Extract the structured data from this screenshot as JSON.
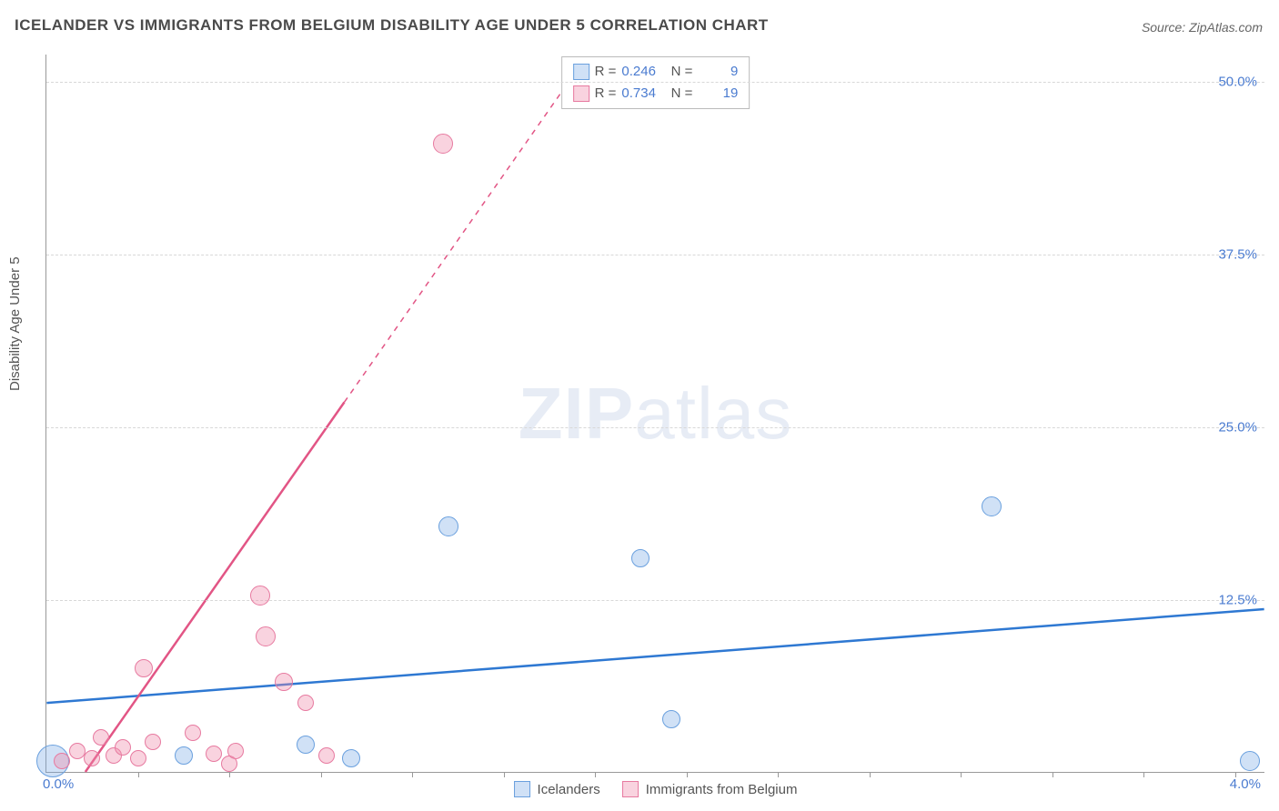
{
  "title": "ICELANDER VS IMMIGRANTS FROM BELGIUM DISABILITY AGE UNDER 5 CORRELATION CHART",
  "source_prefix": "Source: ",
  "source_name": "ZipAtlas.com",
  "y_axis_label": "Disability Age Under 5",
  "watermark_bold": "ZIP",
  "watermark_thin": "atlas",
  "chart": {
    "type": "scatter",
    "xlim": [
      0.0,
      4.0
    ],
    "ylim": [
      0.0,
      52.0
    ],
    "x_origin_label": "0.0%",
    "x_max_label": "4.0%",
    "y_ticks": [
      {
        "v": 12.5,
        "label": "12.5%"
      },
      {
        "v": 25.0,
        "label": "25.0%"
      },
      {
        "v": 37.5,
        "label": "37.5%"
      },
      {
        "v": 50.0,
        "label": "50.0%"
      }
    ],
    "x_minor_ticks": [
      0.3,
      0.6,
      0.9,
      1.2,
      1.5,
      1.8,
      2.1,
      2.4,
      2.7,
      3.0,
      3.3,
      3.6,
      3.9
    ],
    "background_color": "#ffffff",
    "grid_color": "#d8d8d8",
    "series": [
      {
        "id": "icelanders",
        "label": "Icelanders",
        "color_fill": "rgba(120,170,230,0.35)",
        "color_stroke": "#6aa0de",
        "trend_color": "#2e78d2",
        "R": "0.246",
        "N": "9",
        "trend_y_at_xmin": 5.0,
        "trend_y_at_xmax": 11.8,
        "points": [
          {
            "x": 0.02,
            "y": 0.8,
            "r": 18
          },
          {
            "x": 0.45,
            "y": 1.2,
            "r": 10
          },
          {
            "x": 0.85,
            "y": 2.0,
            "r": 10
          },
          {
            "x": 1.0,
            "y": 1.0,
            "r": 10
          },
          {
            "x": 1.32,
            "y": 17.8,
            "r": 11
          },
          {
            "x": 1.95,
            "y": 15.5,
            "r": 10
          },
          {
            "x": 2.05,
            "y": 3.8,
            "r": 10
          },
          {
            "x": 3.1,
            "y": 19.2,
            "r": 11
          },
          {
            "x": 3.95,
            "y": 0.8,
            "r": 11
          }
        ]
      },
      {
        "id": "belgium",
        "label": "Immigrants from Belgium",
        "color_fill": "rgba(240,140,170,0.38)",
        "color_stroke": "#e77aa0",
        "trend_color": "#e25585",
        "R": "0.734",
        "N": "19",
        "trend_y_at_xmin": -4.0,
        "trend_y_at_xmax": 122.0,
        "points": [
          {
            "x": 0.05,
            "y": 0.8,
            "r": 9
          },
          {
            "x": 0.1,
            "y": 1.5,
            "r": 9
          },
          {
            "x": 0.15,
            "y": 1.0,
            "r": 9
          },
          {
            "x": 0.18,
            "y": 2.5,
            "r": 9
          },
          {
            "x": 0.22,
            "y": 1.2,
            "r": 9
          },
          {
            "x": 0.25,
            "y": 1.8,
            "r": 9
          },
          {
            "x": 0.3,
            "y": 1.0,
            "r": 9
          },
          {
            "x": 0.32,
            "y": 7.5,
            "r": 10
          },
          {
            "x": 0.35,
            "y": 2.2,
            "r": 9
          },
          {
            "x": 0.48,
            "y": 2.8,
            "r": 9
          },
          {
            "x": 0.55,
            "y": 1.3,
            "r": 9
          },
          {
            "x": 0.6,
            "y": 0.6,
            "r": 9
          },
          {
            "x": 0.62,
            "y": 1.5,
            "r": 9
          },
          {
            "x": 0.7,
            "y": 12.8,
            "r": 11
          },
          {
            "x": 0.72,
            "y": 9.8,
            "r": 11
          },
          {
            "x": 0.78,
            "y": 6.5,
            "r": 10
          },
          {
            "x": 0.92,
            "y": 1.2,
            "r": 9
          },
          {
            "x": 0.85,
            "y": 5.0,
            "r": 9
          },
          {
            "x": 1.3,
            "y": 45.5,
            "r": 11
          }
        ]
      }
    ]
  }
}
